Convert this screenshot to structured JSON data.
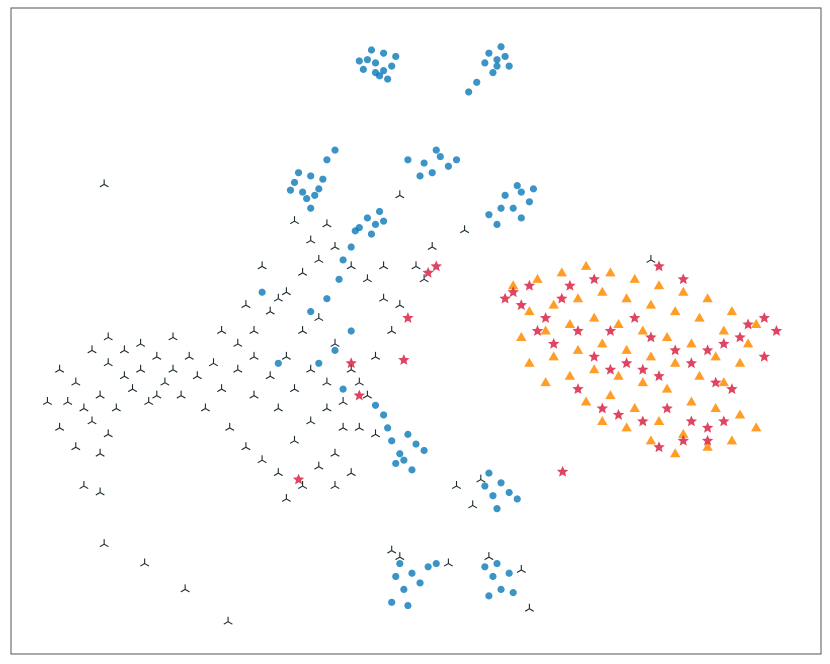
{
  "chart_data": {
    "type": "scatter",
    "xlim": [
      0,
      100
    ],
    "ylim": [
      0,
      100
    ],
    "series": [
      {
        "color": "#0a78b8",
        "marker": "circle",
        "x": [
          44,
          45,
          46,
          47,
          45.5,
          43.5,
          46.5,
          44.5,
          47.5,
          45,
          43,
          46,
          59,
          60,
          61,
          60.5,
          58.5,
          59.5,
          61.5,
          57.5,
          56.5,
          60,
          35,
          36,
          37,
          38,
          36.5,
          35.5,
          38.5,
          37.5,
          34.5,
          39,
          40,
          37,
          51,
          52,
          53,
          54,
          52.5,
          50.5,
          55,
          49,
          61,
          62,
          63,
          64,
          62.5,
          60.5,
          64.5,
          59,
          63,
          60,
          43,
          44,
          45,
          46,
          44.5,
          42.5,
          42,
          41,
          45.5,
          47,
          48,
          49,
          50,
          48.5,
          46.5,
          51,
          49.5,
          47.5,
          46,
          45,
          58.5,
          59.5,
          60.5,
          61.5,
          59,
          60,
          62.5,
          47.5,
          48.5,
          49.5,
          50.5,
          48,
          47,
          51.5,
          52.5,
          49,
          59.5,
          60.5,
          61.5,
          60,
          59,
          62,
          58.5,
          40,
          42,
          38,
          41,
          33,
          39,
          37,
          31,
          40.5
        ],
        "y": [
          92,
          90,
          93,
          91,
          89.5,
          90.5,
          89,
          93.5,
          92.5,
          91.5,
          91.8,
          90.3,
          93,
          91,
          92.5,
          94,
          91.5,
          90,
          91,
          88.5,
          87,
          92,
          73,
          71.5,
          74,
          72,
          70.5,
          74.5,
          73.5,
          71,
          71.8,
          76.5,
          78,
          69,
          76,
          74.5,
          77,
          75.5,
          78,
          74,
          76.5,
          76.5,
          71,
          69,
          71.5,
          70,
          72.5,
          69,
          72,
          68,
          67.5,
          66.5,
          66,
          67.5,
          66.5,
          67,
          65,
          65.5,
          63,
          61,
          68.5,
          33,
          31,
          34,
          32.5,
          30,
          35,
          31.5,
          28.5,
          29.5,
          37,
          38.5,
          26,
          24.5,
          26.5,
          25,
          28,
          22.5,
          24,
          12,
          10,
          12.5,
          11,
          14,
          8,
          13.5,
          14,
          7.5,
          12,
          10,
          12.5,
          14,
          9,
          9.5,
          13.5,
          47,
          50,
          45,
          41,
          45,
          55,
          53,
          56,
          58
        ]
      },
      {
        "color": "#1c2b33",
        "marker": "tri",
        "x": [
          6,
          8,
          10,
          12,
          14,
          16,
          18,
          20,
          11,
          13,
          15,
          17,
          19,
          21,
          9,
          12,
          14,
          16,
          18,
          7,
          10,
          12,
          8,
          11,
          4.5,
          6,
          9,
          11,
          20,
          22,
          11.5,
          16.5,
          21.5,
          26.8,
          11.5,
          48,
          56,
          79,
          24,
          26,
          28,
          30,
          32,
          34,
          36,
          38,
          40,
          42,
          44,
          27,
          29,
          31,
          33,
          35,
          37,
          39,
          41,
          43,
          30,
          32,
          34,
          36,
          38,
          40,
          42,
          44,
          46,
          28,
          30,
          33,
          35,
          37,
          39,
          41,
          45,
          47,
          48,
          46,
          37,
          39,
          35,
          50,
          51,
          52,
          34,
          36,
          38,
          40,
          33,
          31,
          29,
          26,
          25,
          23,
          43,
          45,
          42,
          40,
          55,
          57,
          58,
          48,
          47,
          54,
          59,
          63,
          64
        ],
        "y": [
          44,
          42,
          47,
          45,
          43,
          48,
          46,
          44,
          40,
          38,
          41,
          39,
          42,
          40,
          38,
          49,
          47,
          44,
          40,
          39,
          36,
          34,
          32,
          31,
          39,
          35,
          26,
          25,
          49,
          46,
          17,
          14,
          10,
          5,
          72.7,
          71,
          65.6,
          61,
          38,
          41,
          44,
          40,
          43,
          46,
          50,
          52,
          48,
          44,
          40,
          35,
          32,
          30,
          28,
          33,
          36,
          38,
          35,
          42,
          50,
          53,
          56,
          59,
          61,
          63,
          60,
          58,
          55,
          48,
          46,
          38,
          41,
          44,
          42,
          39,
          46,
          50,
          54,
          60,
          64,
          66.5,
          67,
          60,
          58,
          63,
          24,
          26,
          29,
          31,
          55,
          60,
          54,
          50,
          45,
          43,
          35,
          34,
          28,
          26,
          26,
          23,
          27,
          15,
          16,
          14,
          15,
          13,
          7
        ]
      },
      {
        "color": "#ff8c00",
        "marker": "triangle",
        "x": [
          62,
          65,
          68,
          71,
          74,
          77,
          80,
          83,
          86,
          89,
          92,
          64,
          67,
          70,
          73,
          76,
          79,
          82,
          85,
          88,
          91,
          63,
          66,
          69,
          72,
          75,
          78,
          81,
          84,
          87,
          90,
          64,
          67,
          70,
          73,
          76,
          79,
          82,
          85,
          88,
          66,
          69,
          72,
          75,
          78,
          81,
          84,
          87,
          90,
          71,
          74,
          77,
          80,
          83,
          86,
          89,
          92,
          79,
          82,
          76,
          73
        ],
        "y": [
          57,
          58,
          59,
          60,
          59,
          58,
          57,
          56,
          55,
          53,
          51,
          53,
          54,
          55,
          56,
          55,
          54,
          53,
          52,
          50,
          48,
          49,
          50,
          51,
          52,
          51,
          50,
          49,
          48,
          46,
          45,
          45,
          46,
          47,
          48,
          47,
          46,
          45,
          43,
          42,
          42,
          43,
          44,
          43,
          42,
          41,
          39,
          38,
          37,
          39,
          40,
          38,
          36,
          34,
          32,
          33,
          35,
          33,
          31,
          35,
          36
        ]
      },
      {
        "color": "#d7153a",
        "marker": "star",
        "x": [
          62,
          63,
          61,
          64,
          66,
          65,
          67,
          68,
          70,
          72,
          74,
          76,
          78,
          80,
          82,
          84,
          86,
          88,
          90,
          93,
          94.5,
          93,
          91,
          80,
          83,
          70,
          73,
          75,
          78,
          81,
          84,
          86,
          88,
          83,
          80,
          86,
          72,
          69,
          77,
          79,
          74,
          87,
          89,
          68.1,
          52.5,
          51.5,
          49,
          48.5,
          42,
          43,
          35.5
        ],
        "y": [
          56,
          54,
          55,
          57,
          52,
          50,
          48,
          55,
          50,
          46,
          44,
          45,
          44,
          43,
          47,
          45,
          47,
          48,
          49,
          46,
          50,
          52,
          51,
          60,
          58,
          41,
          38,
          37,
          36,
          38,
          36,
          35,
          36,
          33,
          32,
          33,
          58,
          57,
          52,
          49,
          50,
          42,
          41,
          28.2,
          60,
          59,
          52,
          45.5,
          45,
          40,
          27
        ]
      }
    ]
  }
}
